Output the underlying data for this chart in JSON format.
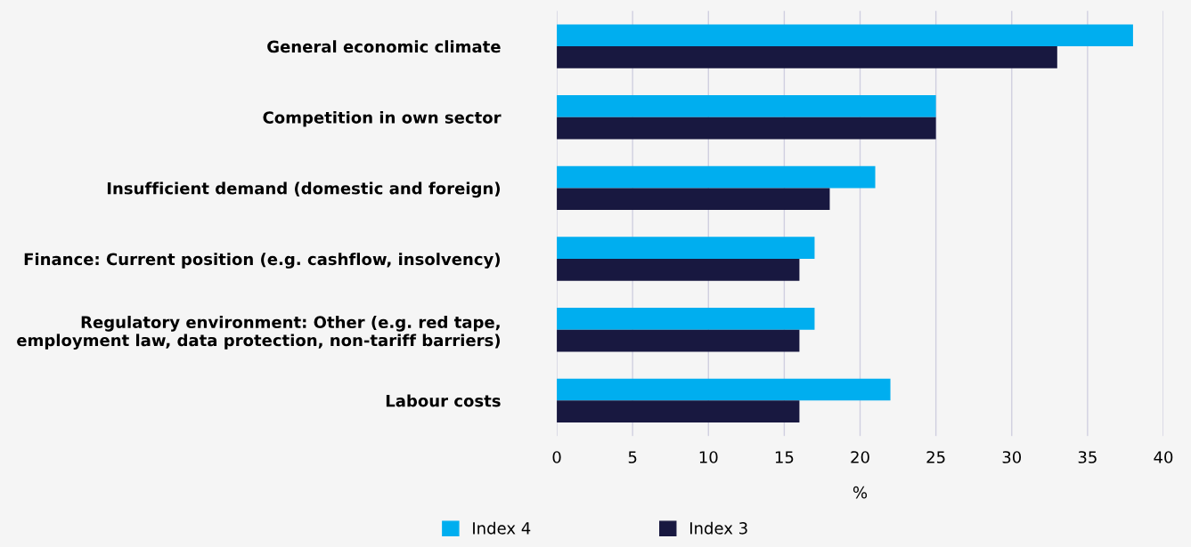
{
  "chart_data": {
    "type": "bar",
    "orientation": "horizontal",
    "xlabel": "%",
    "categories": [
      "General economic climate",
      "Competition in own sector",
      "Insufficient demand (domestic and foreign)",
      "Finance: Current position (e.g. cashflow, insolvency)",
      "Regulatory environment: Other (e.g. red tape,\nemployment law, data protection, non-tariff barriers)",
      "Labour costs"
    ],
    "series": [
      {
        "name": "Index 4",
        "color": "#00aeef",
        "values": [
          38,
          25,
          21,
          17,
          17,
          22
        ]
      },
      {
        "name": "Index 3",
        "color": "#181840",
        "values": [
          33,
          25,
          18,
          16,
          16,
          16
        ]
      }
    ],
    "xlim": [
      0,
      40
    ],
    "xticks": [
      0,
      5,
      10,
      15,
      20,
      25,
      30,
      35,
      40
    ],
    "grid": "x",
    "legend": "bottom"
  }
}
